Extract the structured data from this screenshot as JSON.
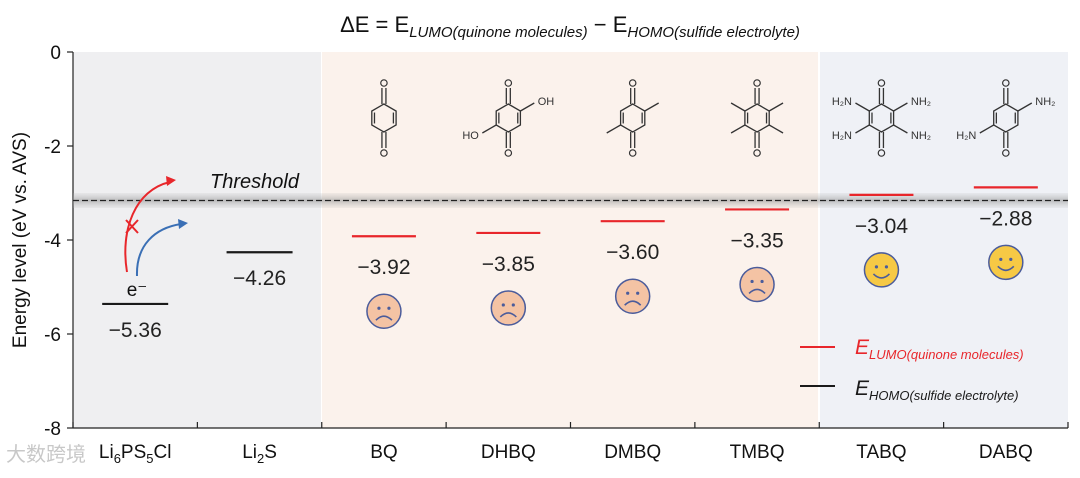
{
  "chart_data": {
    "type": "energy-level-diagram",
    "title": {
      "prefix": "ΔE = E",
      "sub1": "LUMO(quinone molecules)",
      "mid": " − E",
      "sub2": "HOMO(sulfide electrolyte)"
    },
    "ylabel": "Energy level (eV vs. AVS)",
    "ylim": [
      -8,
      0
    ],
    "yticks": [
      0,
      -2,
      -4,
      -6,
      -8
    ],
    "ytick_labels": [
      "0",
      "-2",
      "-4",
      "-6",
      "-8"
    ],
    "threshold": {
      "label": "Threshold",
      "value": -3.15
    },
    "categories": [
      {
        "id": "li6ps5cl",
        "label": [
          "Li",
          "6",
          "PS",
          "5",
          "Cl"
        ],
        "value": -5.36,
        "value_label": "−5.36",
        "kind": "homo",
        "region": "gray"
      },
      {
        "id": "li2s",
        "label": [
          "Li",
          "2",
          "S"
        ],
        "value": -4.26,
        "value_label": "−4.26",
        "kind": "homo",
        "region": "gray"
      },
      {
        "id": "bq",
        "label": [
          "BQ"
        ],
        "value": -3.92,
        "value_label": "−3.92",
        "kind": "lumo",
        "face": "sad",
        "region": "peach"
      },
      {
        "id": "dhbq",
        "label": [
          "DHBQ"
        ],
        "value": -3.85,
        "value_label": "−3.85",
        "kind": "lumo",
        "face": "sad",
        "region": "peach"
      },
      {
        "id": "dmbq",
        "label": [
          "DMBQ"
        ],
        "value": -3.6,
        "value_label": "−3.60",
        "kind": "lumo",
        "face": "sad",
        "region": "peach"
      },
      {
        "id": "tmbq",
        "label": [
          "TMBQ"
        ],
        "value": -3.35,
        "value_label": "−3.35",
        "kind": "lumo",
        "face": "sad",
        "region": "peach"
      },
      {
        "id": "tabq",
        "label": [
          "TABQ"
        ],
        "value": -3.04,
        "value_label": "−3.04",
        "kind": "lumo",
        "face": "happy",
        "region": "blue"
      },
      {
        "id": "dabq",
        "label": [
          "DABQ"
        ],
        "value": -2.88,
        "value_label": "−2.88",
        "kind": "lumo",
        "face": "happy",
        "region": "blue"
      }
    ],
    "electron_label": "e⁻",
    "substituent_labels": {
      "oh": "OH",
      "ho": "HO",
      "nh2": "NH₂",
      "h2n": "H₂N"
    },
    "legend": [
      {
        "base": "E",
        "sub": "LUMO(quinone molecules)",
        "color": "#e8262b"
      },
      {
        "base": "E",
        "sub": "HOMO(sulfide electrolyte)",
        "color": "#1a1a1a"
      }
    ],
    "legend_position": "bottom-right",
    "colors": {
      "lumo": "#e8262b",
      "homo": "#1a1a1a",
      "region_gray": "#efeff1",
      "region_peach": "#fbf2ec",
      "region_blue": "#eff1f6",
      "sad_face": "#f4c3a4",
      "happy_face": "#f6c945",
      "face_stroke": "#4b5c9b",
      "blue_arrow": "#3a6fb5"
    }
  },
  "watermark": "大数跨境"
}
